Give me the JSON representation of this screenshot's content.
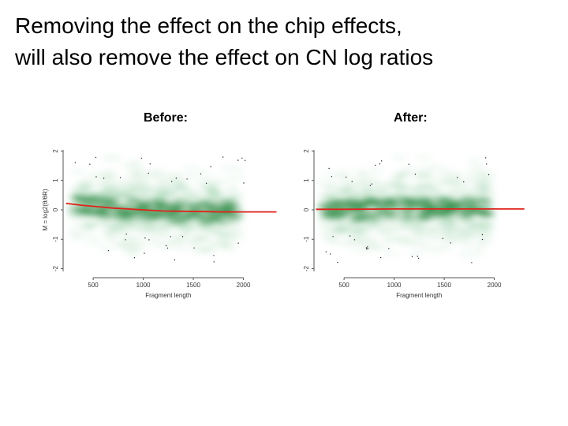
{
  "title": {
    "line1": "Removing the effect on the chip effects,",
    "line2": "will also remove the effect on CN log ratios"
  },
  "panels": {
    "before_label": "Before:",
    "after_label": "After:"
  },
  "chart_data": [
    {
      "type": "scatter",
      "panel": "before",
      "xlabel": "Fragment length",
      "ylabel": "M = log2(θ/θR)",
      "x_ticks": [
        500,
        1000,
        1500,
        2000
      ],
      "y_ticks": [
        -2,
        -1,
        0,
        1,
        2
      ],
      "xlim": [
        200,
        2350
      ],
      "ylim": [
        -2.2,
        2.2
      ],
      "density_color": "#1f8a3a",
      "fit_color": "#e0231b",
      "fit": {
        "x": [
          230,
          300,
          400,
          500,
          600,
          700,
          800,
          900,
          1000,
          1200,
          1400,
          1600,
          1800,
          2000,
          2200,
          2330
        ],
        "y": [
          0.22,
          0.19,
          0.15,
          0.12,
          0.09,
          0.06,
          0.04,
          0.02,
          0.0,
          -0.04,
          -0.05,
          -0.06,
          -0.07,
          -0.07,
          -0.07,
          -0.07
        ]
      }
    },
    {
      "type": "scatter",
      "panel": "after",
      "xlabel": "Fragment length",
      "ylabel": "",
      "x_ticks": [
        500,
        1000,
        1500,
        2000
      ],
      "y_ticks": [
        -2,
        -1,
        0,
        1,
        2
      ],
      "xlim": [
        200,
        2350
      ],
      "ylim": [
        -2.2,
        2.2
      ],
      "density_color": "#1f8a3a",
      "fit_color": "#e0231b",
      "fit": {
        "x": [
          220,
          500,
          1000,
          1500,
          2000,
          2300
        ],
        "y": [
          0.02,
          0.02,
          0.03,
          0.03,
          0.03,
          0.03
        ]
      }
    }
  ]
}
